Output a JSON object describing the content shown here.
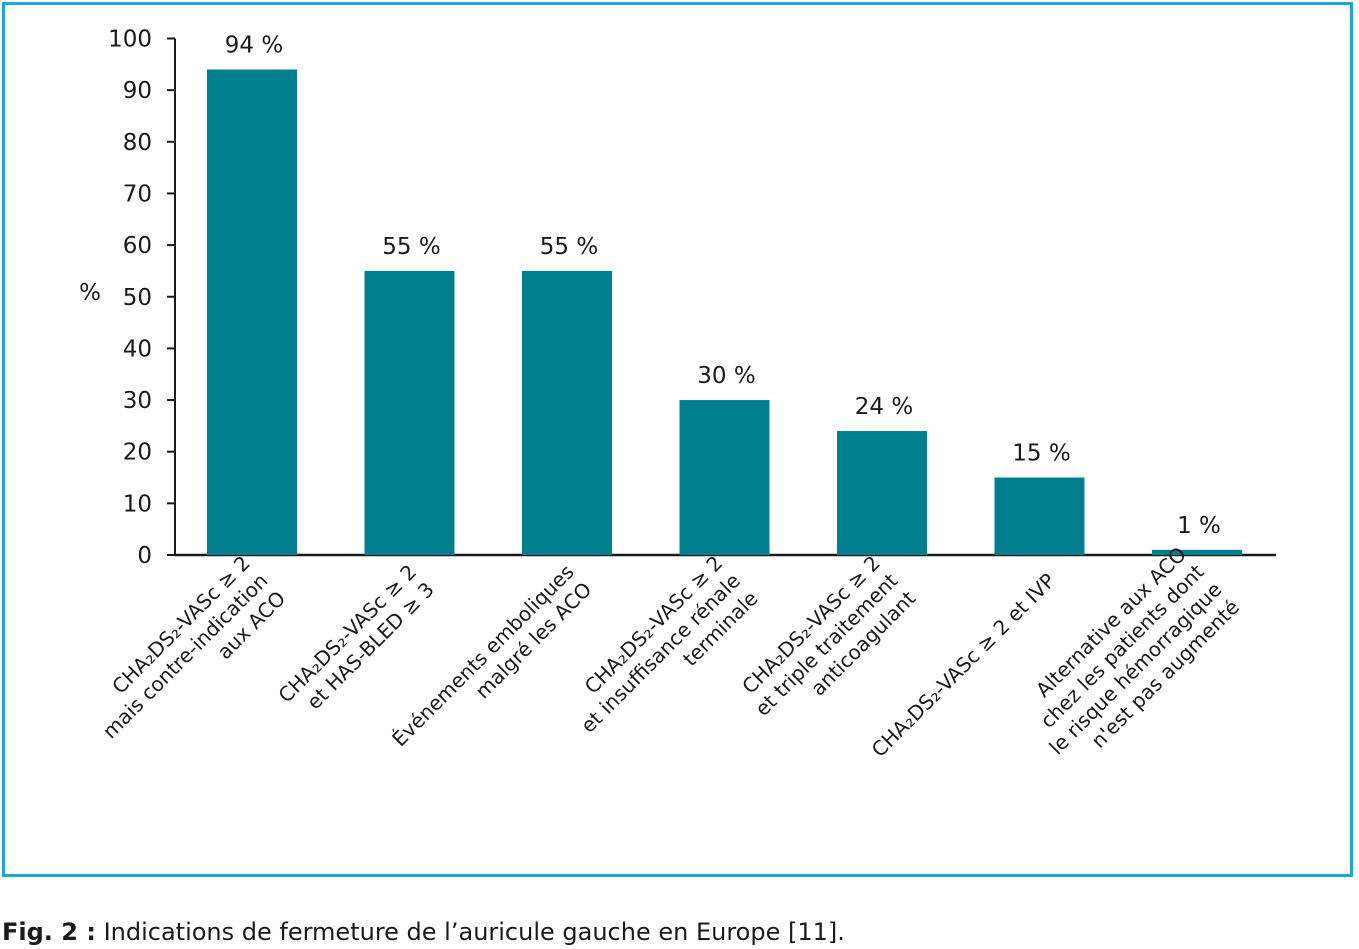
{
  "chart_data": {
    "type": "bar",
    "ylabel": "%",
    "ylim": [
      0,
      100
    ],
    "yticks": [
      0,
      10,
      20,
      30,
      40,
      50,
      60,
      70,
      80,
      90,
      100
    ],
    "color": "#00808f",
    "categories": [
      [
        "CHA₂DS₂-VASc ≥ 2",
        "mais contre-indication",
        "aux ACO"
      ],
      [
        "CHA₂DS₂-VASc ≥ 2",
        "et HAS-BLED ≥ 3"
      ],
      [
        "Événements emboliques",
        "malgré les ACO"
      ],
      [
        "CHA₂DS₂-VASc ≥ 2",
        "et insuffisance rénale",
        "terminale"
      ],
      [
        "CHA₂DS₂-VASc ≥ 2",
        "et triple traitement",
        "anticoagulant"
      ],
      [
        "CHA₂DS₂-VASc ≥ 2 et IVP"
      ],
      [
        "Alternative aux ACO",
        "chez les patients dont",
        "le risque hémorragique",
        "n'est pas augmenté"
      ]
    ],
    "values": [
      94,
      55,
      55,
      30,
      24,
      15,
      1
    ],
    "value_labels": [
      "94 %",
      "55 %",
      "55 %",
      "30 %",
      "24 %",
      "15 %",
      "1 %"
    ]
  },
  "caption": {
    "lead": "Fig. 2 :",
    "text": " Indications de fermeture de l’auricule gauche en Europe [11]."
  }
}
